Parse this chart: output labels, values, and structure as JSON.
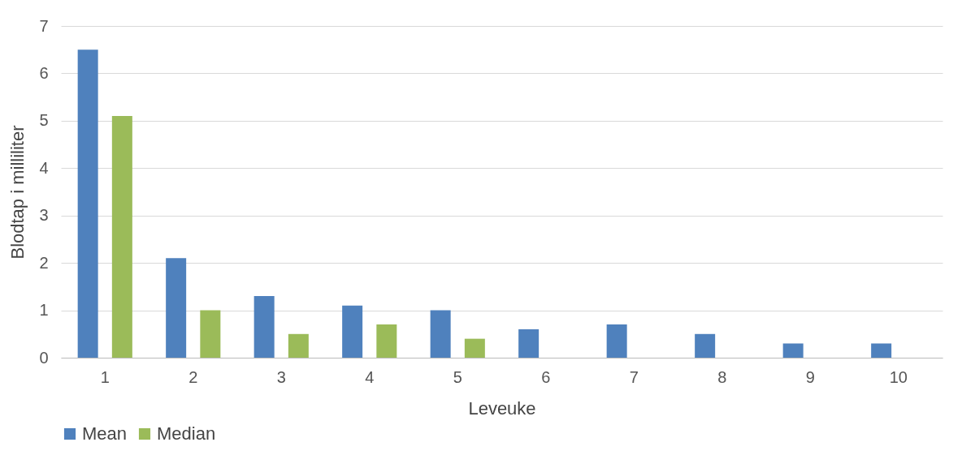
{
  "chart_data": {
    "type": "bar",
    "xlabel": "Leveuke",
    "ylabel": "Blodtap i milliliter",
    "categories": [
      "1",
      "2",
      "3",
      "4",
      "5",
      "6",
      "7",
      "8",
      "9",
      "10"
    ],
    "series": [
      {
        "name": "Mean",
        "color": "#4f81bd",
        "values": [
          6.5,
          2.1,
          1.3,
          1.1,
          1.0,
          0.6,
          0.7,
          0.5,
          0.3,
          0.3
        ]
      },
      {
        "name": "Median",
        "color": "#9bbb59",
        "values": [
          5.1,
          1.0,
          0.5,
          0.7,
          0.4,
          null,
          null,
          null,
          null,
          null
        ]
      }
    ],
    "ylim": [
      0,
      7
    ],
    "yticks": [
      0,
      1,
      2,
      3,
      4,
      5,
      6,
      7
    ],
    "grid": "y",
    "legend": "bottom left"
  }
}
